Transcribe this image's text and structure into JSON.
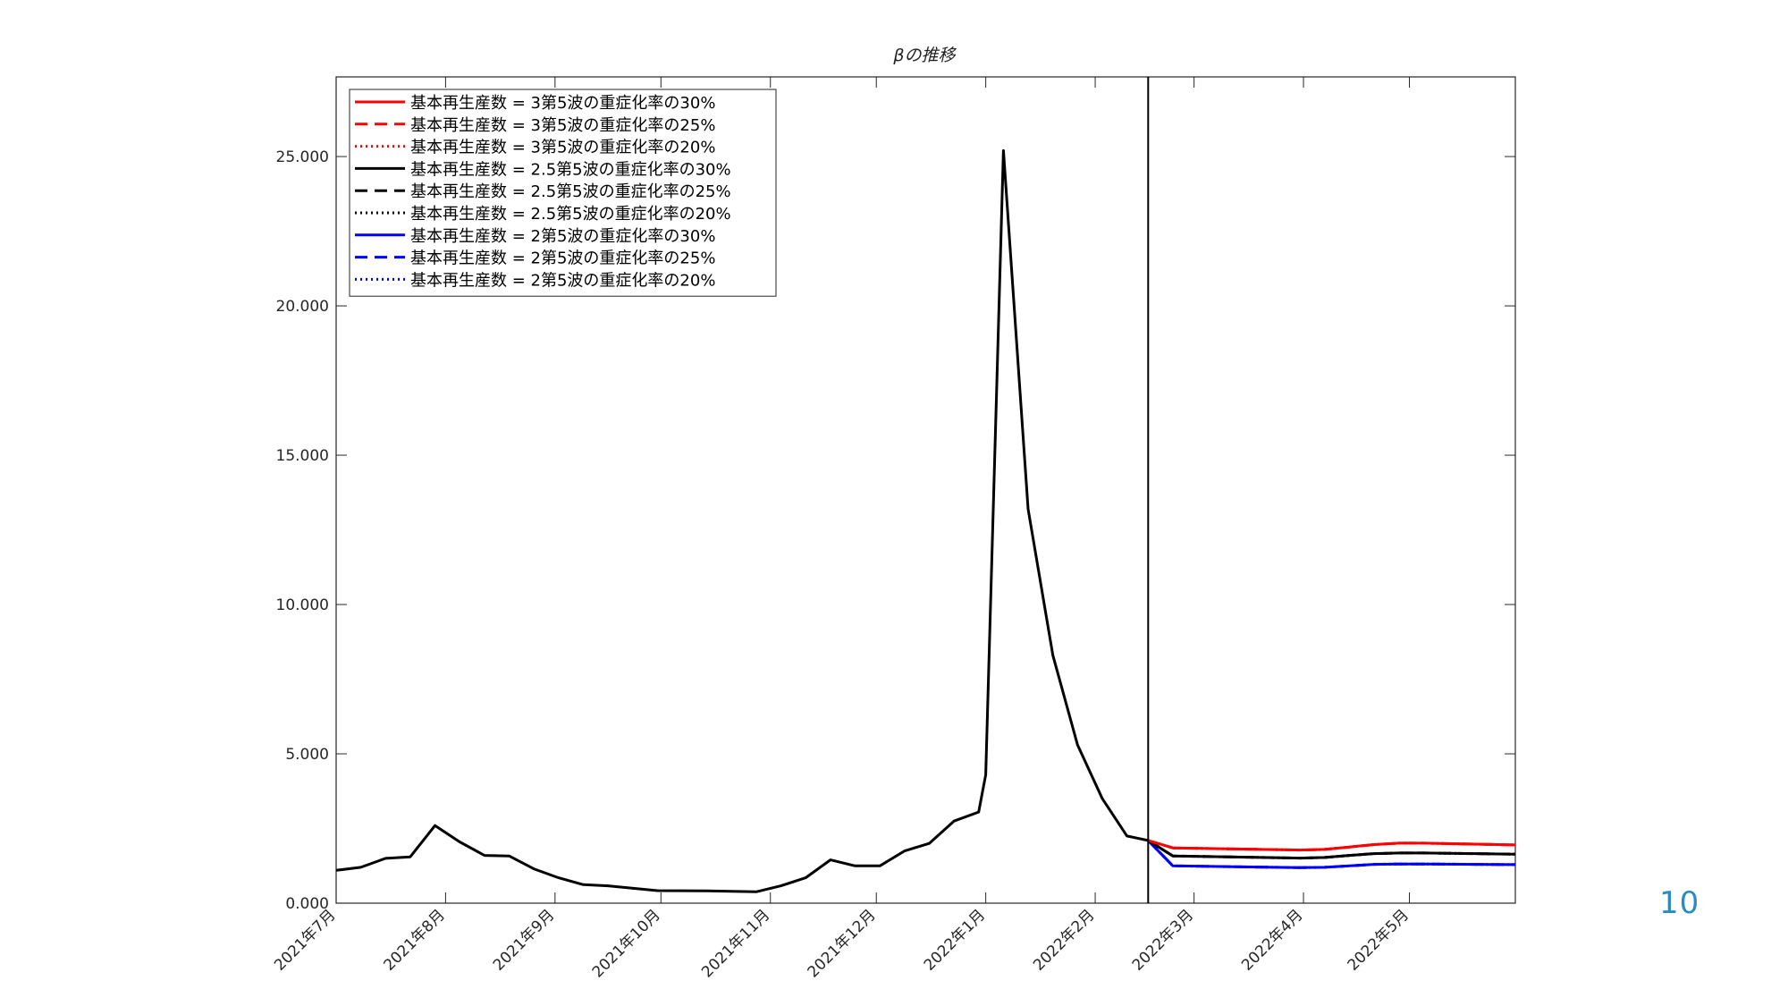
{
  "page_number": "10",
  "chart_data": {
    "type": "line",
    "title": "βの推移",
    "xlabel": "",
    "ylabel": "",
    "ylim": [
      0,
      27667
    ],
    "yticks": [
      0,
      5000,
      10000,
      15000,
      20000,
      25000
    ],
    "ytick_labels": [
      "0.000",
      "5.000",
      "10.000",
      "15.000",
      "20.000",
      "25.000"
    ],
    "xlim": [
      "2021-07-01",
      "2022-05-31"
    ],
    "xticks": [
      "2021-07-01",
      "2021-08-01",
      "2021-09-01",
      "2021-10-01",
      "2021-11-01",
      "2021-12-01",
      "2022-01-01",
      "2022-02-01",
      "2022-03-01",
      "2022-04-01",
      "2022-05-01"
    ],
    "xtick_labels": [
      "2021年7月",
      "2021年8月",
      "2021年9月",
      "2021年10月",
      "2021年11月",
      "2021年12月",
      "2022年1月",
      "2022年2月",
      "2022年3月",
      "2022年4月",
      "2022年5月"
    ],
    "grid": false,
    "legend_position": "top-left",
    "vline_date": "2022-02-16",
    "historical": {
      "x": [
        "2021-07-01",
        "2021-07-08",
        "2021-07-15",
        "2021-07-22",
        "2021-07-29",
        "2021-08-05",
        "2021-08-12",
        "2021-08-19",
        "2021-08-26",
        "2021-09-02",
        "2021-09-09",
        "2021-09-16",
        "2021-09-30",
        "2021-10-14",
        "2021-10-28",
        "2021-11-04",
        "2021-11-11",
        "2021-11-18",
        "2021-11-25",
        "2021-12-02",
        "2021-12-09",
        "2021-12-16",
        "2021-12-23",
        "2021-12-30",
        "2022-01-01",
        "2022-01-06",
        "2022-01-13",
        "2022-01-20",
        "2022-01-27",
        "2022-02-03",
        "2022-02-10",
        "2022-02-16"
      ],
      "y": [
        1100,
        1200,
        1500,
        1550,
        2600,
        2050,
        1600,
        1580,
        1150,
        850,
        620,
        580,
        420,
        410,
        380,
        580,
        850,
        1450,
        1250,
        1250,
        1750,
        2000,
        2750,
        3050,
        4300,
        25200,
        13200,
        8300,
        5300,
        3500,
        2250,
        2100
      ]
    },
    "forecast_x": [
      "2022-02-16",
      "2022-02-23",
      "2022-03-31",
      "2022-04-07",
      "2022-04-14",
      "2022-04-21",
      "2022-04-28",
      "2022-05-05",
      "2022-05-31"
    ],
    "series": [
      {
        "name": "基本再生産数 = 3第5波の重症化率の30%",
        "color": "#ff0000",
        "dash": "solid",
        "values": [
          2100,
          1850,
          1780,
          1800,
          1880,
          1960,
          2010,
          2010,
          1950
        ]
      },
      {
        "name": "基本再生産数 = 3第5波の重症化率の25%",
        "color": "#ff0000",
        "dash": "dashed",
        "values": [
          2100,
          1850,
          1780,
          1800,
          1880,
          1960,
          2010,
          2010,
          1950
        ]
      },
      {
        "name": "基本再生産数 = 3第5波の重症化率の20%",
        "color": "#ff0000",
        "dash": "dotted",
        "values": [
          2100,
          1850,
          1780,
          1800,
          1880,
          1960,
          2010,
          2010,
          1950
        ]
      },
      {
        "name": "基本再生産数 = 2.5第5波の重症化率の30%",
        "color": "#000000",
        "dash": "solid",
        "values": [
          2100,
          1580,
          1510,
          1530,
          1600,
          1660,
          1680,
          1680,
          1640
        ]
      },
      {
        "name": "基本再生産数 = 2.5第5波の重症化率の25%",
        "color": "#000000",
        "dash": "dashed",
        "values": [
          2100,
          1580,
          1510,
          1530,
          1600,
          1660,
          1680,
          1680,
          1640
        ]
      },
      {
        "name": "基本再生産数 = 2.5第5波の重症化率の20%",
        "color": "#000000",
        "dash": "dotted",
        "values": [
          2100,
          1580,
          1510,
          1530,
          1600,
          1660,
          1680,
          1680,
          1640
        ]
      },
      {
        "name": "基本再生産数 = 2第5波の重症化率の30%",
        "color": "#0000ff",
        "dash": "solid",
        "values": [
          2100,
          1250,
          1190,
          1200,
          1250,
          1300,
          1310,
          1310,
          1290
        ]
      },
      {
        "name": "基本再生産数 = 2第5波の重症化率の25%",
        "color": "#0000ff",
        "dash": "dashed",
        "values": [
          2100,
          1250,
          1190,
          1200,
          1250,
          1300,
          1310,
          1310,
          1290
        ]
      },
      {
        "name": "基本再生産数 = 2第5波の重症化率の20%",
        "color": "#0000ff",
        "dash": "dotted",
        "values": [
          2100,
          1250,
          1190,
          1200,
          1250,
          1300,
          1310,
          1310,
          1290
        ]
      }
    ]
  }
}
